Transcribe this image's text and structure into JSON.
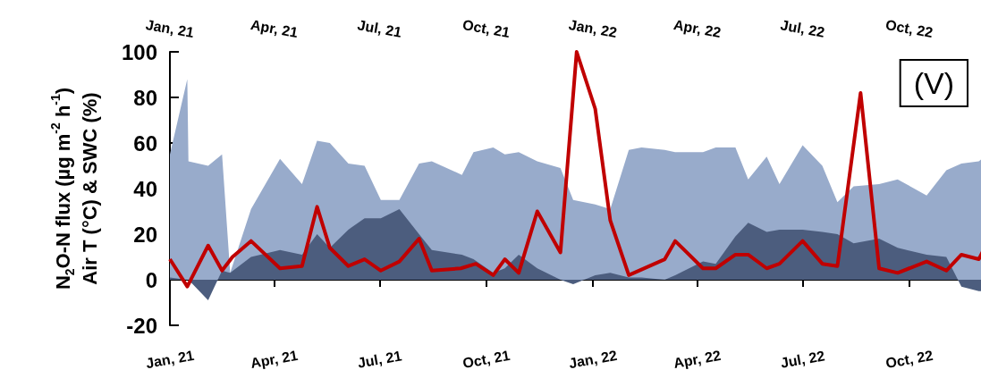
{
  "chart_data": {
    "type": "area",
    "ylabel": "N$_{2}$O-N flux (µg m$^{-2}$ h$^{-1}$)\nAir T (°C) & SWC (%)",
    "annotations": [
      "(V)"
    ],
    "x": [
      "2021-01-01",
      "2021-01-16",
      "2021-01-17",
      "2021-02-03",
      "2021-02-15",
      "2021-02-22",
      "2021-03-12",
      "2021-04-06",
      "2021-04-25",
      "2021-05-08",
      "2021-05-19",
      "2021-06-04",
      "2021-06-18",
      "2021-07-02",
      "2021-07-18",
      "2021-08-04",
      "2021-08-15",
      "2021-09-10",
      "2021-09-20",
      "2021-10-07",
      "2021-10-17",
      "2021-10-29",
      "2021-11-14",
      "2021-12-04",
      "2021-12-15",
      "2022-01-03",
      "2022-01-16",
      "2022-02-01",
      "2022-02-12",
      "2022-03-04",
      "2022-03-13",
      "2022-04-06",
      "2022-04-17",
      "2022-05-04",
      "2022-05-15",
      "2022-05-31",
      "2022-06-11",
      "2022-07-01",
      "2022-07-18",
      "2022-07-31",
      "2022-08-14",
      "2022-09-05",
      "2022-09-21",
      "2022-10-16",
      "2022-11-02",
      "2022-11-15",
      "2022-11-30",
      "2022-12-05"
    ],
    "series": [
      {
        "type": "area",
        "color": "#98abcb",
        "values": [
          55,
          88,
          52,
          50,
          55,
          3,
          31,
          53,
          42,
          61,
          60,
          51,
          50,
          35,
          35,
          51,
          52,
          46,
          56,
          58,
          55,
          56,
          52,
          49,
          35,
          33,
          31,
          57,
          58,
          57,
          56,
          56,
          58,
          58,
          44,
          54,
          42,
          59,
          50,
          34,
          41,
          42,
          44,
          37,
          48,
          51,
          52,
          54
        ]
      },
      {
        "type": "area",
        "color": "#4c5d7e",
        "values": [
          1,
          0,
          0,
          -9,
          4,
          3,
          10,
          13,
          11,
          20,
          14,
          22,
          27,
          27,
          31,
          20,
          13,
          11,
          9,
          3,
          5,
          11,
          5,
          0,
          -2,
          2,
          3,
          1,
          1,
          0,
          2,
          8,
          7,
          19,
          25,
          21,
          22,
          22,
          21,
          20,
          16,
          18,
          14,
          11,
          10,
          -3,
          -5,
          -5
        ]
      },
      {
        "type": "line",
        "color": "#c00000",
        "x": [
          "2021-01-01",
          "2021-01-16",
          "2021-02-03",
          "2021-02-15",
          "2021-02-24",
          "2021-03-12",
          "2021-04-06",
          "2021-04-25",
          "2021-05-08",
          "2021-05-19",
          "2021-06-04",
          "2021-06-18",
          "2021-07-02",
          "2021-07-18",
          "2021-08-04",
          "2021-08-15",
          "2021-09-09",
          "2021-09-22",
          "2021-10-07",
          "2021-10-17",
          "2021-10-29",
          "2021-11-14",
          "2021-12-04",
          "2021-12-18",
          "2022-01-03",
          "2022-01-16",
          "2022-02-01",
          "2022-03-04",
          "2022-03-13",
          "2022-04-06",
          "2022-04-17",
          "2022-05-04",
          "2022-05-15",
          "2022-05-31",
          "2022-06-11",
          "2022-07-01",
          "2022-07-18",
          "2022-07-31",
          "2022-08-20",
          "2022-09-05",
          "2022-09-21",
          "2022-10-16",
          "2022-11-02",
          "2022-11-15",
          "2022-11-30",
          "2022-12-05"
        ],
        "values": [
          9,
          -3,
          15,
          4,
          10,
          17,
          5,
          6,
          32,
          14,
          6,
          9,
          4,
          8,
          18,
          4,
          5,
          7,
          2,
          9,
          3,
          30,
          12,
          100,
          75,
          26,
          2,
          9,
          17,
          5,
          5,
          11,
          11,
          5,
          7,
          17,
          7,
          6,
          82,
          5,
          3,
          8,
          4,
          11,
          9,
          14
        ]
      }
    ],
    "xlim": [
      "2021-01-01",
      "2022-12-05"
    ],
    "xticks": [
      {
        "value": "2021-01-01",
        "label": "Jan, 21"
      },
      {
        "value": "2021-04-01",
        "label": "Apr, 21"
      },
      {
        "value": "2021-07-01",
        "label": "Jul, 21"
      },
      {
        "value": "2021-10-01",
        "label": "Oct, 21"
      },
      {
        "value": "2022-01-01",
        "label": "Jan, 22"
      },
      {
        "value": "2022-04-01",
        "label": "Apr, 22"
      },
      {
        "value": "2022-07-01",
        "label": "Jul, 22"
      },
      {
        "value": "2022-10-01",
        "label": "Oct, 22"
      }
    ],
    "x2lim": [
      "2021-01-01",
      "2022-12-05"
    ],
    "x2ticks": [
      {
        "value": "2021-01-01",
        "label": "Jan, 21"
      },
      {
        "value": "2021-04-01",
        "label": "Apr, 21"
      },
      {
        "value": "2021-07-01",
        "label": "Jul, 21"
      },
      {
        "value": "2021-10-01",
        "label": "Oct, 21"
      },
      {
        "value": "2022-01-01",
        "label": "Jan, 22"
      },
      {
        "value": "2022-04-01",
        "label": "Apr, 22"
      },
      {
        "value": "2022-07-01",
        "label": "Jul, 22"
      },
      {
        "value": "2022-10-01",
        "label": "Oct, 22"
      }
    ],
    "ylim": [
      -20,
      100
    ],
    "yticks": [
      -20,
      0,
      20,
      40,
      60,
      80,
      100
    ]
  }
}
